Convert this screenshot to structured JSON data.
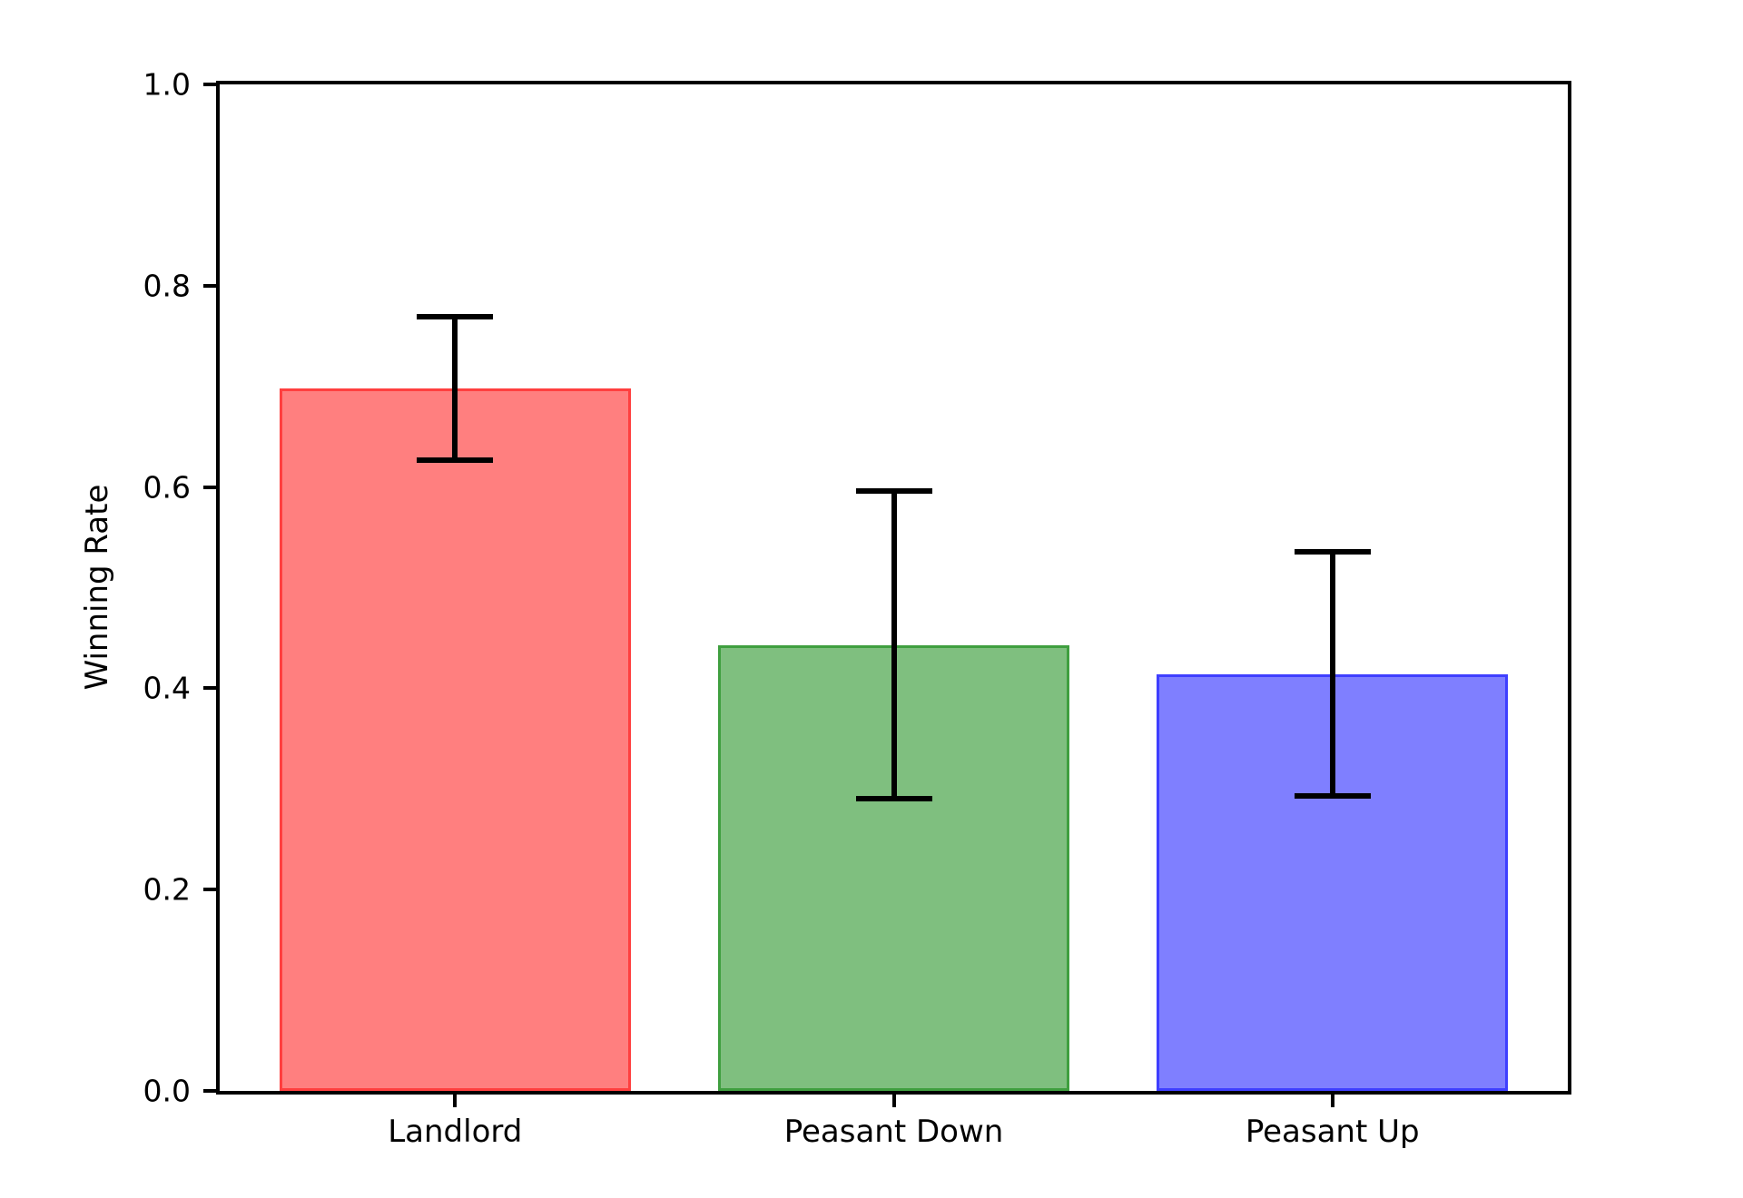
{
  "chart_data": {
    "type": "bar",
    "title": "",
    "xlabel": "",
    "ylabel": "Winning Rate",
    "categories": [
      "Landlord",
      "Peasant Down",
      "Peasant Up"
    ],
    "values": [
      0.698,
      0.443,
      0.414
    ],
    "error_plus": [
      0.071,
      0.153,
      0.122
    ],
    "error_minus": [
      0.071,
      0.153,
      0.121
    ],
    "bar_fill_colors": [
      "#ff7f7f",
      "#7fbf7f",
      "#7f7fff"
    ],
    "bar_edge_colors": [
      "#ff3f3f",
      "#3f9f3f",
      "#3f3fff"
    ],
    "error_bar_color": "#000000",
    "yticks": [
      0.0,
      0.2,
      0.4,
      0.6,
      0.8,
      1.0
    ],
    "ytick_labels": [
      "0.0",
      "0.2",
      "0.4",
      "0.6",
      "0.8",
      "1.0"
    ],
    "ylim": [
      0.0,
      1.0
    ],
    "xlim": [
      -0.5366,
      2.5366
    ],
    "bar_width": 0.8,
    "grid": false,
    "legend": null,
    "background_color": "#ffffff",
    "axis_color": "#000000"
  }
}
